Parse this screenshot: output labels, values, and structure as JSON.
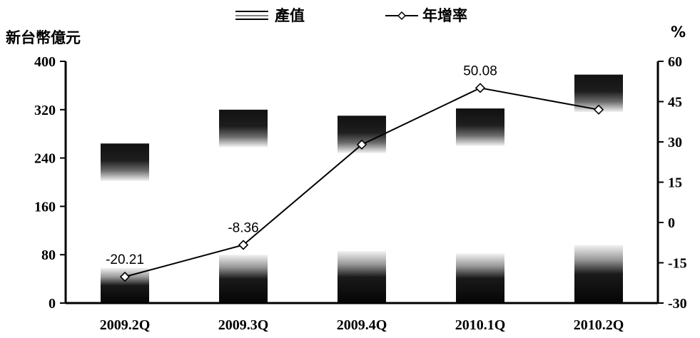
{
  "chart_data": {
    "type": "bar",
    "categories": [
      "2009.2Q",
      "2009.3Q",
      "2009.4Q",
      "2010.1Q",
      "2010.2Q"
    ],
    "series": [
      {
        "name": "產值",
        "type": "bar",
        "axis": "left",
        "segments": [
          [
            58,
            206
          ],
          [
            80,
            240
          ],
          [
            86,
            224
          ],
          [
            82,
            240
          ],
          [
            96,
            282
          ]
        ],
        "values": [
          264,
          320,
          310,
          322,
          378
        ]
      },
      {
        "name": "年增率",
        "type": "line",
        "axis": "right",
        "values": [
          -20.21,
          -8.36,
          29,
          50.08,
          42
        ],
        "data_labels": [
          "-20.21",
          "-8.36",
          "",
          "50.08",
          ""
        ]
      }
    ],
    "y_left": {
      "label": "新台幣億元",
      "lim": [
        0,
        400
      ],
      "ticks": [
        "0",
        "80",
        "160",
        "240",
        "320",
        "400"
      ]
    },
    "y_right": {
      "label": "%",
      "lim": [
        -30,
        60
      ],
      "ticks": [
        "-30",
        "-15",
        "0",
        "15",
        "30",
        "45",
        "60"
      ]
    },
    "legend_position": "top-center",
    "colors": {
      "bar_bottom": "#111111",
      "bar_top": "#1a1a1a",
      "bar_light": "#e6e6e6",
      "line": "#000000",
      "marker_fill": "#ffffff"
    }
  }
}
